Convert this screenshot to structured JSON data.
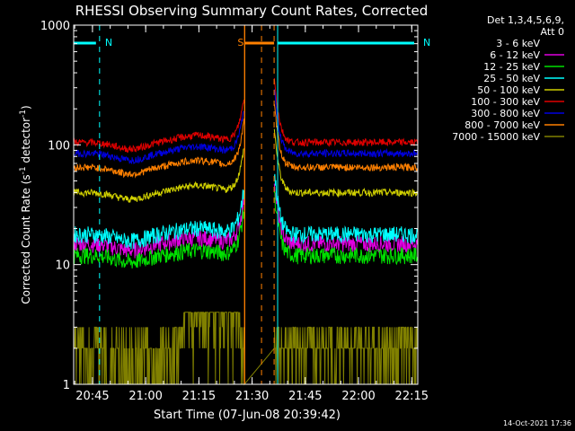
{
  "chart_data": {
    "type": "line",
    "title": "RHESSI Observing Summary Count Rates, Corrected",
    "xlabel": "Start Time (07-Jun-08 20:39:42)",
    "ylabel_main": "Corrected Count Rate (s",
    "ylabel_sup1": "-1",
    "ylabel_mid": " detector",
    "ylabel_sup2": "-1",
    "ylabel_end": ")",
    "y_scale": "log",
    "ylim": [
      1,
      1000
    ],
    "xlim_minutes_after_2039_42": [
      0,
      97
    ],
    "y_ticks": [
      "1",
      "10",
      "100",
      "1000"
    ],
    "x_ticks": [
      {
        "label": "20:45",
        "minute": 5.3
      },
      {
        "label": "21:00",
        "minute": 20.3
      },
      {
        "label": "21:15",
        "minute": 35.3
      },
      {
        "label": "21:30",
        "minute": 50.3
      },
      {
        "label": "21:45",
        "minute": 65.3
      },
      {
        "label": "22:00",
        "minute": 80.3
      },
      {
        "label": "22:15",
        "minute": 95.3
      }
    ],
    "legend_header": [
      "Det 1,3,4,5,6,9,",
      "Att 0"
    ],
    "legend_position": "right, outside plot",
    "series": [
      {
        "name": "3 - 6 keV",
        "color": "#000000",
        "level": 8,
        "bump": 0.08
      },
      {
        "name": "6 - 12 keV",
        "color": "#e000e0",
        "level": 15,
        "bump": 0.12
      },
      {
        "name": "12 - 25 keV",
        "color": "#00e000",
        "level": 12,
        "bump": 0.1
      },
      {
        "name": "25 - 50 keV",
        "color": "#00ffff",
        "level": 18,
        "bump": 0.12
      },
      {
        "name": "50 - 100 keV",
        "color": "#d0d000",
        "level": 40,
        "bump": 0.14
      },
      {
        "name": "100 - 300 keV",
        "color": "#e00000",
        "level": 105,
        "bump": 0.14
      },
      {
        "name": "300 - 800 keV",
        "color": "#0000e0",
        "level": 85,
        "bump": 0.14
      },
      {
        "name": "800 - 7000 keV",
        "color": "#ff8000",
        "level": 65,
        "bump": 0.14
      },
      {
        "name": "7000 - 15000 keV",
        "color": "#808000",
        "level": 2,
        "bump": 0.0
      }
    ],
    "annotations": [
      {
        "label": "N",
        "color": "#00ffff",
        "start_minute": 0,
        "end_minute": 7.3
      },
      {
        "label": "N",
        "color": "#00ffff",
        "start_minute": 57.5,
        "end_minute": 97
      },
      {
        "label": "S",
        "color": "#ff8000",
        "start_minute": 48.2,
        "end_minute": 56.5
      }
    ],
    "gap_start_minute": 48.2,
    "gap_end_minute": 56.5,
    "grid": false
  },
  "footer": {
    "timestamp": "14-Oct-2021 17:36"
  }
}
